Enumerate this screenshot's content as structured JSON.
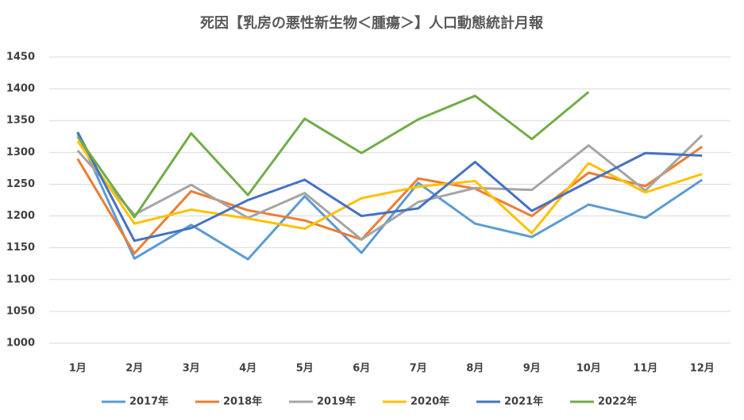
{
  "chart_data": {
    "type": "line",
    "title": "死因【乳房の悪性新生物＜腫瘍＞】人口動態統計月報",
    "categories": [
      "1月",
      "2月",
      "3月",
      "4月",
      "5月",
      "6月",
      "7月",
      "8月",
      "9月",
      "10月",
      "11月",
      "12月"
    ],
    "series": [
      {
        "name": "2017年",
        "color": "#5b9bd5",
        "values": [
          1330,
          1133,
          1186,
          1132,
          1231,
          1142,
          1252,
          1188,
          1167,
          1218,
          1197,
          1257
        ]
      },
      {
        "name": "2018年",
        "color": "#ed7d31",
        "values": [
          1290,
          1141,
          1239,
          1209,
          1193,
          1163,
          1259,
          1243,
          1200,
          1268,
          1247,
          1309
        ]
      },
      {
        "name": "2019年",
        "color": "#a5a5a5",
        "values": [
          1303,
          1202,
          1249,
          1197,
          1236,
          1163,
          1222,
          1244,
          1241,
          1311,
          1240,
          1327
        ]
      },
      {
        "name": "2020年",
        "color": "#ffc000",
        "values": [
          1318,
          1188,
          1210,
          1196,
          1180,
          1228,
          1246,
          1255,
          1173,
          1283,
          1237,
          1266
        ]
      },
      {
        "name": "2021年",
        "color": "#4472c4",
        "values": [
          1332,
          1161,
          1181,
          1225,
          1257,
          1200,
          1212,
          1285,
          1208,
          1254,
          1299,
          1295
        ]
      },
      {
        "name": "2022年",
        "color": "#70ad47",
        "values": [
          1325,
          1198,
          1330,
          1233,
          1353,
          1299,
          1352,
          1389,
          1321,
          1395,
          null,
          null
        ]
      }
    ],
    "ylim": [
      1000,
      1450
    ],
    "yticks": [
      1000,
      1050,
      1100,
      1150,
      1200,
      1250,
      1300,
      1350,
      1400,
      1450
    ],
    "grid": true,
    "legend": "bottom"
  }
}
